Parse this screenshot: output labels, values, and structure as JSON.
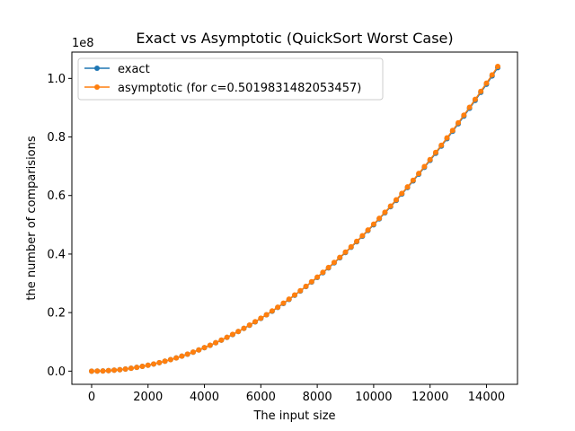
{
  "chart_data": {
    "type": "line",
    "title": "Exact vs Asymptotic (QuickSort Worst Case)",
    "xlabel": "The input size",
    "ylabel": "the number of comparisions",
    "y_offset_label": "1e8",
    "xlim": [
      -700,
      15100
    ],
    "ylim": [
      -0.045,
      1.09
    ],
    "x_ticks": [
      0,
      2000,
      4000,
      6000,
      8000,
      10000,
      12000,
      14000
    ],
    "x_tick_labels": [
      "0",
      "2000",
      "4000",
      "6000",
      "8000",
      "10000",
      "12000",
      "14000"
    ],
    "y_ticks": [
      0.0,
      0.2,
      0.4,
      0.6,
      0.8,
      1.0
    ],
    "y_tick_labels": [
      "0.0",
      "0.2",
      "0.4",
      "0.6",
      "0.8",
      "1.0"
    ],
    "grid": false,
    "legend_placement": "top-left",
    "x": [
      0,
      200,
      400,
      600,
      800,
      1000,
      1200,
      1400,
      1600,
      1800,
      2000,
      2200,
      2400,
      2600,
      2800,
      3000,
      3200,
      3400,
      3600,
      3800,
      4000,
      4200,
      4400,
      4600,
      4800,
      5000,
      5200,
      5400,
      5600,
      5800,
      6000,
      6200,
      6400,
      6600,
      6800,
      7000,
      7200,
      7400,
      7600,
      7800,
      8000,
      8200,
      8400,
      8600,
      8800,
      9000,
      9200,
      9400,
      9600,
      9800,
      10000,
      10200,
      10400,
      10600,
      10800,
      11000,
      11200,
      11400,
      11600,
      11800,
      12000,
      12200,
      12400,
      12600,
      12800,
      13000,
      13200,
      13400,
      13600,
      13800,
      14000,
      14200,
      14400
    ],
    "series": [
      {
        "name": "exact",
        "color": "#1f77b4",
        "values": [
          0.0,
          0.0002,
          0.0008,
          0.0018,
          0.0032,
          0.005,
          0.0072,
          0.0098,
          0.0128,
          0.0162,
          0.02,
          0.0242,
          0.0288,
          0.0338,
          0.0392,
          0.045,
          0.0512,
          0.0578,
          0.0648,
          0.0722,
          0.08,
          0.0882,
          0.0968,
          0.1058,
          0.1152,
          0.125,
          0.1352,
          0.1458,
          0.1568,
          0.1682,
          0.18,
          0.1922,
          0.2048,
          0.2178,
          0.2312,
          0.245,
          0.2592,
          0.2738,
          0.2888,
          0.3042,
          0.32,
          0.3362,
          0.3528,
          0.3698,
          0.3872,
          0.405,
          0.4232,
          0.4418,
          0.4608,
          0.4802,
          0.5,
          0.5202,
          0.5408,
          0.5618,
          0.5832,
          0.605,
          0.6272,
          0.6498,
          0.6728,
          0.6962,
          0.72,
          0.7442,
          0.7688,
          0.7938,
          0.8192,
          0.845,
          0.8712,
          0.8978,
          0.9248,
          0.9522,
          0.98,
          1.0082,
          1.0368
        ]
      },
      {
        "name": "asymptotic (for c=0.5019831482053457)",
        "color": "#ff7f0e",
        "values": [
          0.0,
          0.0002,
          0.0008,
          0.0018,
          0.0032,
          0.005,
          0.0072,
          0.0098,
          0.0128,
          0.0163,
          0.0201,
          0.0243,
          0.0289,
          0.0339,
          0.0394,
          0.0452,
          0.0514,
          0.058,
          0.065,
          0.0725,
          0.0803,
          0.0885,
          0.0972,
          0.1062,
          0.1157,
          0.1255,
          0.1357,
          0.1464,
          0.1574,
          0.1689,
          0.1807,
          0.1929,
          0.2056,
          0.2186,
          0.2321,
          0.246,
          0.2602,
          0.2749,
          0.2899,
          0.3054,
          0.3213,
          0.3375,
          0.3542,
          0.3713,
          0.3887,
          0.4066,
          0.4248,
          0.4435,
          0.4626,
          0.4821,
          0.502,
          0.5222,
          0.5429,
          0.564,
          0.5855,
          0.6074,
          0.6296,
          0.6523,
          0.6754,
          0.6989,
          0.7228,
          0.7471,
          0.7718,
          0.7969,
          0.8224,
          0.8483,
          0.8746,
          0.9013,
          0.9284,
          0.9559,
          0.9839,
          1.0122,
          1.0409
        ]
      }
    ]
  }
}
